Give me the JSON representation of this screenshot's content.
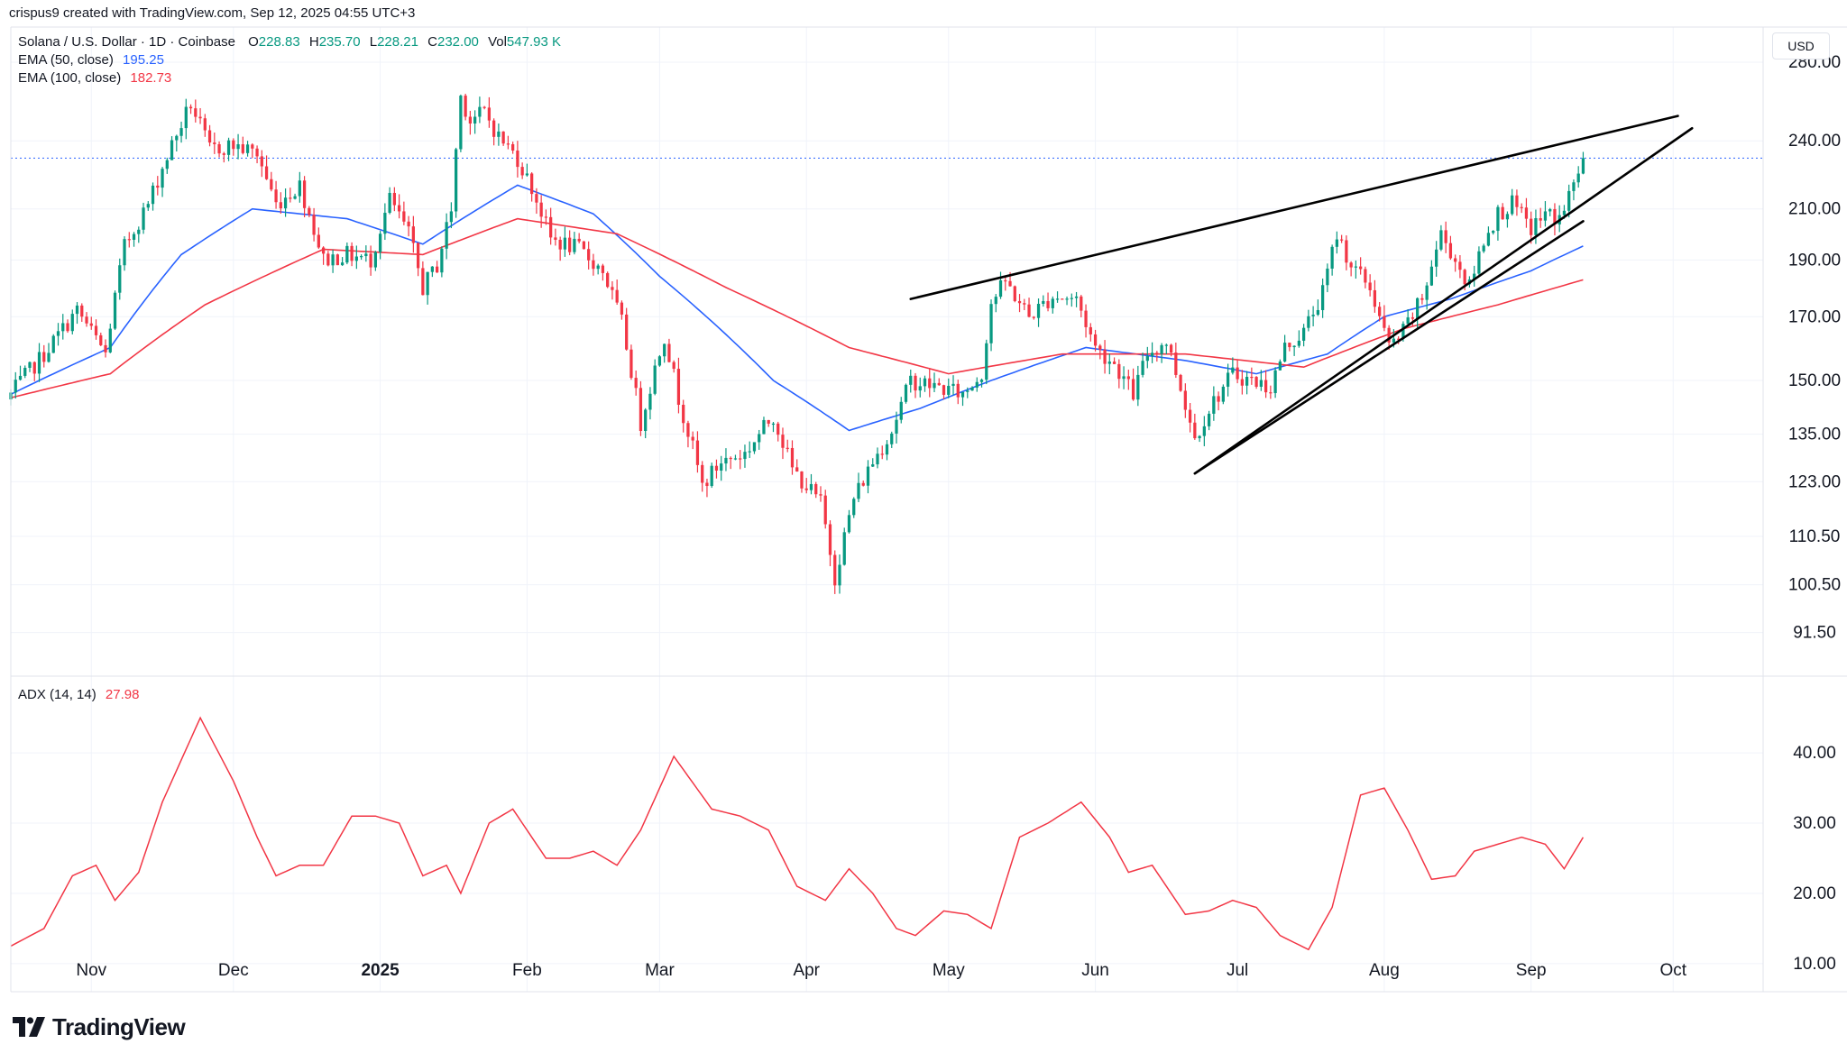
{
  "header": {
    "attribution": "crispus9 created with TradingView.com, Sep 12, 2025 04:55 UTC+3"
  },
  "legend": {
    "symbol": "Solana / U.S. Dollar · 1D · Coinbase",
    "o_label": "O",
    "o_value": "228.83",
    "h_label": "H",
    "h_value": "235.70",
    "l_label": "L",
    "l_value": "228.21",
    "c_label": "C",
    "c_value": "232.00",
    "vol_label": "Vol",
    "vol_value": "547.93 K",
    "ema50_label": "EMA (50, close)",
    "ema50_value": "195.25",
    "ema100_label": "EMA (100, close)",
    "ema100_value": "182.73",
    "adx_label": "ADX (14, 14)",
    "adx_value": "27.98"
  },
  "currency": "USD",
  "brand": {
    "name": "TradingView"
  },
  "colors": {
    "up": "#089981",
    "down": "#f23645",
    "ema50": "#2962ff",
    "ema100": "#f23645",
    "adx": "#f23645",
    "trendline": "#000000",
    "grid": "#f0f3fa",
    "price_line": "#2962ff"
  },
  "chart_data": [
    {
      "type": "candlestick",
      "title": "Solana / U.S. Dollar · 1D · Coinbase",
      "yscale": "log",
      "ylim": [
        84,
        300
      ],
      "xlim": [
        "2024-10-15",
        "2025-10-20"
      ],
      "y_ticks": [
        "280.00",
        "240.00",
        "210.00",
        "190.00",
        "170.00",
        "150.00",
        "135.00",
        "123.00",
        "110.50",
        "100.50",
        "91.50"
      ],
      "x_ticks": [
        {
          "label": "Nov",
          "date": "2024-11-01"
        },
        {
          "label": "Dec",
          "date": "2024-12-01"
        },
        {
          "label": "2025",
          "date": "2025-01-01"
        },
        {
          "label": "Feb",
          "date": "2025-02-01"
        },
        {
          "label": "Mar",
          "date": "2025-03-01"
        },
        {
          "label": "Apr",
          "date": "2025-04-01"
        },
        {
          "label": "May",
          "date": "2025-05-01"
        },
        {
          "label": "Jun",
          "date": "2025-06-01"
        },
        {
          "label": "Jul",
          "date": "2025-07-01"
        },
        {
          "label": "Aug",
          "date": "2025-08-01"
        },
        {
          "label": "Sep",
          "date": "2025-09-01"
        },
        {
          "label": "Oct",
          "date": "2025-10-01"
        }
      ],
      "last_price": 232.0,
      "close_anchors": [
        [
          "2024-10-15",
          146
        ],
        [
          "2024-10-22",
          158
        ],
        [
          "2024-10-29",
          172
        ],
        [
          "2024-11-04",
          158
        ],
        [
          "2024-11-08",
          195
        ],
        [
          "2024-11-13",
          212
        ],
        [
          "2024-11-18",
          238
        ],
        [
          "2024-11-22",
          258
        ],
        [
          "2024-11-26",
          236
        ],
        [
          "2024-12-01",
          238
        ],
        [
          "2024-12-06",
          234
        ],
        [
          "2024-12-10",
          212
        ],
        [
          "2024-12-15",
          220
        ],
        [
          "2024-12-20",
          190
        ],
        [
          "2024-12-25",
          192
        ],
        [
          "2024-12-30",
          190
        ],
        [
          "2025-01-03",
          214
        ],
        [
          "2025-01-07",
          200
        ],
        [
          "2025-01-10",
          180
        ],
        [
          "2025-01-13",
          188
        ],
        [
          "2025-01-16",
          210
        ],
        [
          "2025-01-18",
          262
        ],
        [
          "2025-01-20",
          250
        ],
        [
          "2025-01-23",
          254
        ],
        [
          "2025-01-26",
          242
        ],
        [
          "2025-01-30",
          232
        ],
        [
          "2025-02-03",
          214
        ],
        [
          "2025-02-06",
          198
        ],
        [
          "2025-02-12",
          194
        ],
        [
          "2025-02-17",
          186
        ],
        [
          "2025-02-21",
          168
        ],
        [
          "2025-02-25",
          138
        ],
        [
          "2025-03-02",
          164
        ],
        [
          "2025-03-05",
          145
        ],
        [
          "2025-03-10",
          122
        ],
        [
          "2025-03-14",
          128
        ],
        [
          "2025-03-19",
          130
        ],
        [
          "2025-03-25",
          140
        ],
        [
          "2025-03-29",
          126
        ],
        [
          "2025-04-04",
          118
        ],
        [
          "2025-04-07",
          102
        ],
        [
          "2025-04-11",
          119
        ],
        [
          "2025-04-15",
          128
        ],
        [
          "2025-04-19",
          136
        ],
        [
          "2025-04-23",
          150
        ],
        [
          "2025-04-29",
          148
        ],
        [
          "2025-05-04",
          146
        ],
        [
          "2025-05-08",
          152
        ],
        [
          "2025-05-10",
          175
        ],
        [
          "2025-05-13",
          182
        ],
        [
          "2025-05-18",
          170
        ],
        [
          "2025-05-23",
          177
        ],
        [
          "2025-05-28",
          176
        ],
        [
          "2025-06-01",
          160
        ],
        [
          "2025-06-05",
          155
        ],
        [
          "2025-06-09",
          146
        ],
        [
          "2025-06-12",
          158
        ],
        [
          "2025-06-16",
          162
        ],
        [
          "2025-06-19",
          148
        ],
        [
          "2025-06-22",
          134
        ],
        [
          "2025-06-25",
          142
        ],
        [
          "2025-06-30",
          152
        ],
        [
          "2025-07-04",
          150
        ],
        [
          "2025-07-08",
          148
        ],
        [
          "2025-07-11",
          160
        ],
        [
          "2025-07-15",
          165
        ],
        [
          "2025-07-19",
          178
        ],
        [
          "2025-07-22",
          200
        ],
        [
          "2025-07-25",
          188
        ],
        [
          "2025-07-29",
          180
        ],
        [
          "2025-08-02",
          160
        ],
        [
          "2025-08-05",
          165
        ],
        [
          "2025-08-09",
          176
        ],
        [
          "2025-08-13",
          200
        ],
        [
          "2025-08-16",
          190
        ],
        [
          "2025-08-19",
          180
        ],
        [
          "2025-08-22",
          198
        ],
        [
          "2025-08-25",
          208
        ],
        [
          "2025-08-28",
          212
        ],
        [
          "2025-09-01",
          202
        ],
        [
          "2025-09-04",
          208
        ],
        [
          "2025-09-07",
          206
        ],
        [
          "2025-09-10",
          220
        ],
        [
          "2025-09-12",
          232
        ]
      ],
      "series": [
        {
          "name": "EMA (50, close)",
          "anchors": [
            [
              "2024-10-15",
              146
            ],
            [
              "2024-11-05",
              160
            ],
            [
              "2024-11-20",
              192
            ],
            [
              "2024-12-05",
              210
            ],
            [
              "2024-12-25",
              206
            ],
            [
              "2025-01-10",
              196
            ],
            [
              "2025-01-30",
              220
            ],
            [
              "2025-02-15",
              208
            ],
            [
              "2025-03-01",
              184
            ],
            [
              "2025-03-25",
              150
            ],
            [
              "2025-04-10",
              136
            ],
            [
              "2025-04-25",
              142
            ],
            [
              "2025-05-10",
              150
            ],
            [
              "2025-05-30",
              160
            ],
            [
              "2025-06-20",
              156
            ],
            [
              "2025-07-05",
              152
            ],
            [
              "2025-07-20",
              158
            ],
            [
              "2025-08-01",
              170
            ],
            [
              "2025-08-15",
              176
            ],
            [
              "2025-09-01",
              186
            ],
            [
              "2025-09-12",
              195.25
            ]
          ]
        },
        {
          "name": "EMA (100, close)",
          "anchors": [
            [
              "2024-10-15",
              145
            ],
            [
              "2024-11-05",
              152
            ],
            [
              "2024-11-25",
              174
            ],
            [
              "2024-12-20",
              194
            ],
            [
              "2025-01-10",
              192
            ],
            [
              "2025-01-30",
              206
            ],
            [
              "2025-02-20",
              200
            ],
            [
              "2025-03-15",
              180
            ],
            [
              "2025-04-10",
              160
            ],
            [
              "2025-05-01",
              152
            ],
            [
              "2025-05-25",
              158
            ],
            [
              "2025-06-20",
              158
            ],
            [
              "2025-07-15",
              154
            ],
            [
              "2025-08-05",
              166
            ],
            [
              "2025-08-25",
              174
            ],
            [
              "2025-09-12",
              182.73
            ]
          ]
        }
      ],
      "trendlines": [
        {
          "from": [
            "2025-04-23",
            176
          ],
          "to": [
            "2025-10-02",
            252
          ]
        },
        {
          "from": [
            "2025-06-22",
            125
          ],
          "to": [
            "2025-10-05",
            246
          ]
        },
        {
          "from": [
            "2025-06-22",
            125
          ],
          "to": [
            "2025-09-12",
            205
          ]
        }
      ]
    },
    {
      "type": "line",
      "title": "ADX (14, 14)",
      "ylim": [
        6,
        49
      ],
      "y_ticks": [
        "40.00",
        "30.00",
        "20.00",
        "10.00"
      ],
      "series": [
        {
          "name": "ADX (14, 14)",
          "points": [
            [
              "2024-10-15",
              12.5
            ],
            [
              "2024-10-22",
              15
            ],
            [
              "2024-10-28",
              22.5
            ],
            [
              "2024-11-02",
              24
            ],
            [
              "2024-11-06",
              19
            ],
            [
              "2024-11-11",
              23
            ],
            [
              "2024-11-16",
              33
            ],
            [
              "2024-11-24",
              45
            ],
            [
              "2024-12-01",
              36
            ],
            [
              "2024-12-06",
              28
            ],
            [
              "2024-12-10",
              22.5
            ],
            [
              "2024-12-15",
              24
            ],
            [
              "2024-12-20",
              24
            ],
            [
              "2024-12-26",
              31
            ],
            [
              "2024-12-31",
              31
            ],
            [
              "2025-01-05",
              30
            ],
            [
              "2025-01-10",
              22.5
            ],
            [
              "2025-01-15",
              24
            ],
            [
              "2025-01-18",
              20
            ],
            [
              "2025-01-24",
              30
            ],
            [
              "2025-01-29",
              32
            ],
            [
              "2025-02-05",
              25
            ],
            [
              "2025-02-10",
              25
            ],
            [
              "2025-02-15",
              26
            ],
            [
              "2025-02-20",
              24
            ],
            [
              "2025-02-25",
              29
            ],
            [
              "2025-03-04",
              39.5
            ],
            [
              "2025-03-12",
              32
            ],
            [
              "2025-03-18",
              31
            ],
            [
              "2025-03-24",
              29
            ],
            [
              "2025-03-30",
              21
            ],
            [
              "2025-04-05",
              19
            ],
            [
              "2025-04-10",
              23.5
            ],
            [
              "2025-04-15",
              20
            ],
            [
              "2025-04-20",
              15
            ],
            [
              "2025-04-24",
              14
            ],
            [
              "2025-04-30",
              17.5
            ],
            [
              "2025-05-05",
              17
            ],
            [
              "2025-05-10",
              15
            ],
            [
              "2025-05-16",
              28
            ],
            [
              "2025-05-22",
              30
            ],
            [
              "2025-05-29",
              33
            ],
            [
              "2025-06-04",
              28
            ],
            [
              "2025-06-08",
              23
            ],
            [
              "2025-06-13",
              24
            ],
            [
              "2025-06-20",
              17
            ],
            [
              "2025-06-25",
              17.5
            ],
            [
              "2025-06-30",
              19
            ],
            [
              "2025-07-05",
              18
            ],
            [
              "2025-07-10",
              14
            ],
            [
              "2025-07-16",
              12
            ],
            [
              "2025-07-21",
              18
            ],
            [
              "2025-07-27",
              34
            ],
            [
              "2025-08-01",
              35
            ],
            [
              "2025-08-06",
              29
            ],
            [
              "2025-08-11",
              22
            ],
            [
              "2025-08-16",
              22.5
            ],
            [
              "2025-08-20",
              26
            ],
            [
              "2025-08-25",
              27
            ],
            [
              "2025-08-30",
              28
            ],
            [
              "2025-09-04",
              27
            ],
            [
              "2025-09-08",
              23.5
            ],
            [
              "2025-09-12",
              27.98
            ]
          ]
        }
      ]
    }
  ]
}
